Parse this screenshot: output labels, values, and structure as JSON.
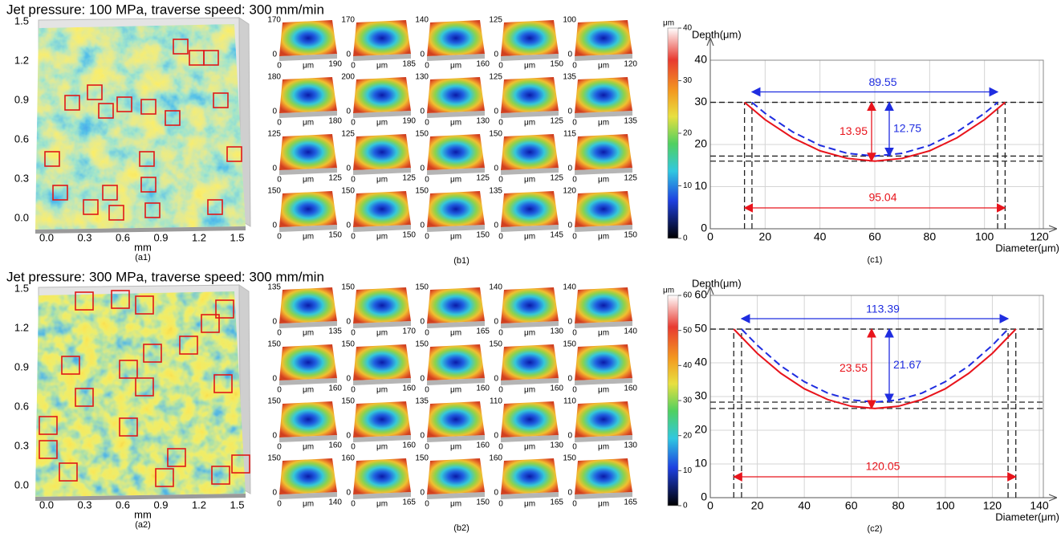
{
  "panels": [
    {
      "title": "Jet pressure: 100 MPa, traverse speed: 300 mm/min",
      "surface": {
        "yticks": [
          "1.5",
          "1.2",
          "0.9",
          "0.6",
          "0.3",
          "0.0"
        ],
        "xticks": [
          "0.0",
          "0.3",
          "0.6",
          "0.9",
          "1.2",
          "1.5"
        ],
        "xlabel": "mm",
        "caption": "(a1)"
      },
      "craters": {
        "caption": "(b1)",
        "zero": "0",
        "unit": "μm",
        "items": [
          [
            "170",
            "190"
          ],
          [
            "170",
            "185"
          ],
          [
            "140",
            "160"
          ],
          [
            "125",
            "150"
          ],
          [
            "100",
            "120"
          ],
          [
            "180",
            "180"
          ],
          [
            "200",
            "190"
          ],
          [
            "130",
            "130"
          ],
          [
            "125",
            "125"
          ],
          [
            "135",
            "135"
          ],
          [
            "125",
            "125"
          ],
          [
            "125",
            "125"
          ],
          [
            "150",
            "125"
          ],
          [
            "150",
            "125"
          ],
          [
            "115",
            "125"
          ],
          [
            "150",
            "150"
          ],
          [
            "150",
            "150"
          ],
          [
            "150",
            "150"
          ],
          [
            "135",
            "145"
          ],
          [
            "120",
            "150"
          ]
        ]
      },
      "colorbar": {
        "unit": "μm",
        "lim": [
          0,
          40
        ],
        "ticks": [
          0,
          10,
          20,
          30,
          40
        ]
      }
    },
    {
      "title": "Jet pressure: 300 MPa, traverse speed: 300 mm/min",
      "surface": {
        "yticks": [
          "1.5",
          "1.2",
          "0.9",
          "0.6",
          "0.3",
          "0.0"
        ],
        "xticks": [
          "0.0",
          "0.3",
          "0.6",
          "0.9",
          "1.2",
          "1.5"
        ],
        "xlabel": "mm",
        "caption": "(a2)"
      },
      "craters": {
        "caption": "(b2)",
        "zero": "0",
        "unit": "μm",
        "items": [
          [
            "135",
            "135"
          ],
          [
            "150",
            "170"
          ],
          [
            "150",
            "165"
          ],
          [
            "140",
            "130"
          ],
          [
            "140",
            "140"
          ],
          [
            "150",
            "160"
          ],
          [
            "150",
            "160"
          ],
          [
            "150",
            "160"
          ],
          [
            "150",
            "160"
          ],
          [
            "150",
            "160"
          ],
          [
            "150",
            "160"
          ],
          [
            "150",
            "160"
          ],
          [
            "135",
            "160"
          ],
          [
            "110",
            "130"
          ],
          [
            "110",
            "130"
          ],
          [
            "150",
            "140"
          ],
          [
            "160",
            "165"
          ],
          [
            "150",
            "150"
          ],
          [
            "160",
            "165"
          ],
          [
            "150",
            "165"
          ]
        ]
      },
      "colorbar": {
        "unit": "μm",
        "lim": [
          0,
          60
        ],
        "ticks": [
          0,
          10,
          20,
          30,
          40,
          50,
          60
        ]
      }
    }
  ],
  "chart_data": [
    {
      "type": "line",
      "caption": "(c1)",
      "x_label": "Diameter(μm)",
      "y_label": "Depth(μm)",
      "grid": true,
      "xlim": [
        0,
        120
      ],
      "xticks": [
        0,
        20,
        40,
        60,
        80,
        100,
        120
      ],
      "ylim": [
        0,
        40
      ],
      "yticks": [
        0,
        10,
        20,
        30,
        40
      ],
      "series": [
        {
          "color": "#e8141c",
          "dash": false,
          "x": [
            12.48,
            20,
            30,
            40,
            50,
            60,
            70,
            80,
            90,
            100,
            107.52
          ],
          "values": [
            30,
            25.9,
            21.6,
            18.5,
            16.7,
            16.05,
            16.7,
            18.5,
            21.6,
            25.9,
            30
          ]
        },
        {
          "color": "#1f2de0",
          "dash": true,
          "x": [
            15.2,
            20,
            30,
            40,
            50,
            60,
            70,
            80,
            90,
            100,
            104.8
          ],
          "values": [
            30,
            27.4,
            23.0,
            19.8,
            17.9,
            17.25,
            17.9,
            19.8,
            23.0,
            27.4,
            30
          ]
        }
      ],
      "annotations": [
        {
          "text": "89.55",
          "color": "#1f2de0"
        },
        {
          "text": "13.95",
          "color": "#e8141c"
        },
        {
          "text": "12.75",
          "color": "#1f2de0"
        },
        {
          "text": "95.04",
          "color": "#e8141c"
        }
      ]
    },
    {
      "type": "line",
      "caption": "(c2)",
      "x_label": "Diameter(μm)",
      "y_label": "Depth(μm)",
      "grid": true,
      "xlim": [
        0,
        140
      ],
      "xticks": [
        0,
        20,
        40,
        60,
        80,
        100,
        120,
        140
      ],
      "ylim": [
        0,
        60
      ],
      "yticks": [
        0,
        10,
        20,
        30,
        40,
        50,
        60
      ],
      "series": [
        {
          "color": "#e8141c",
          "dash": false,
          "x": [
            10,
            20,
            30,
            40,
            50,
            60,
            70,
            80,
            90,
            100,
            110,
            120,
            130
          ],
          "values": [
            50,
            42.8,
            36.9,
            32.3,
            29.1,
            27.1,
            26.45,
            27.1,
            29.1,
            32.3,
            36.9,
            42.8,
            50
          ]
        },
        {
          "color": "#1f2de0",
          "dash": true,
          "x": [
            13.3,
            20,
            30,
            40,
            50,
            60,
            70,
            80,
            90,
            100,
            110,
            120,
            126.7
          ],
          "values": [
            50,
            45.2,
            39.1,
            34.4,
            31.0,
            29.0,
            28.33,
            29.0,
            31.0,
            34.4,
            39.1,
            45.2,
            50
          ]
        }
      ],
      "annotations": [
        {
          "text": "113.39",
          "color": "#1f2de0"
        },
        {
          "text": "23.55",
          "color": "#e8141c"
        },
        {
          "text": "21.67",
          "color": "#1f2de0"
        },
        {
          "text": "120.05",
          "color": "#e8141c"
        }
      ]
    }
  ]
}
